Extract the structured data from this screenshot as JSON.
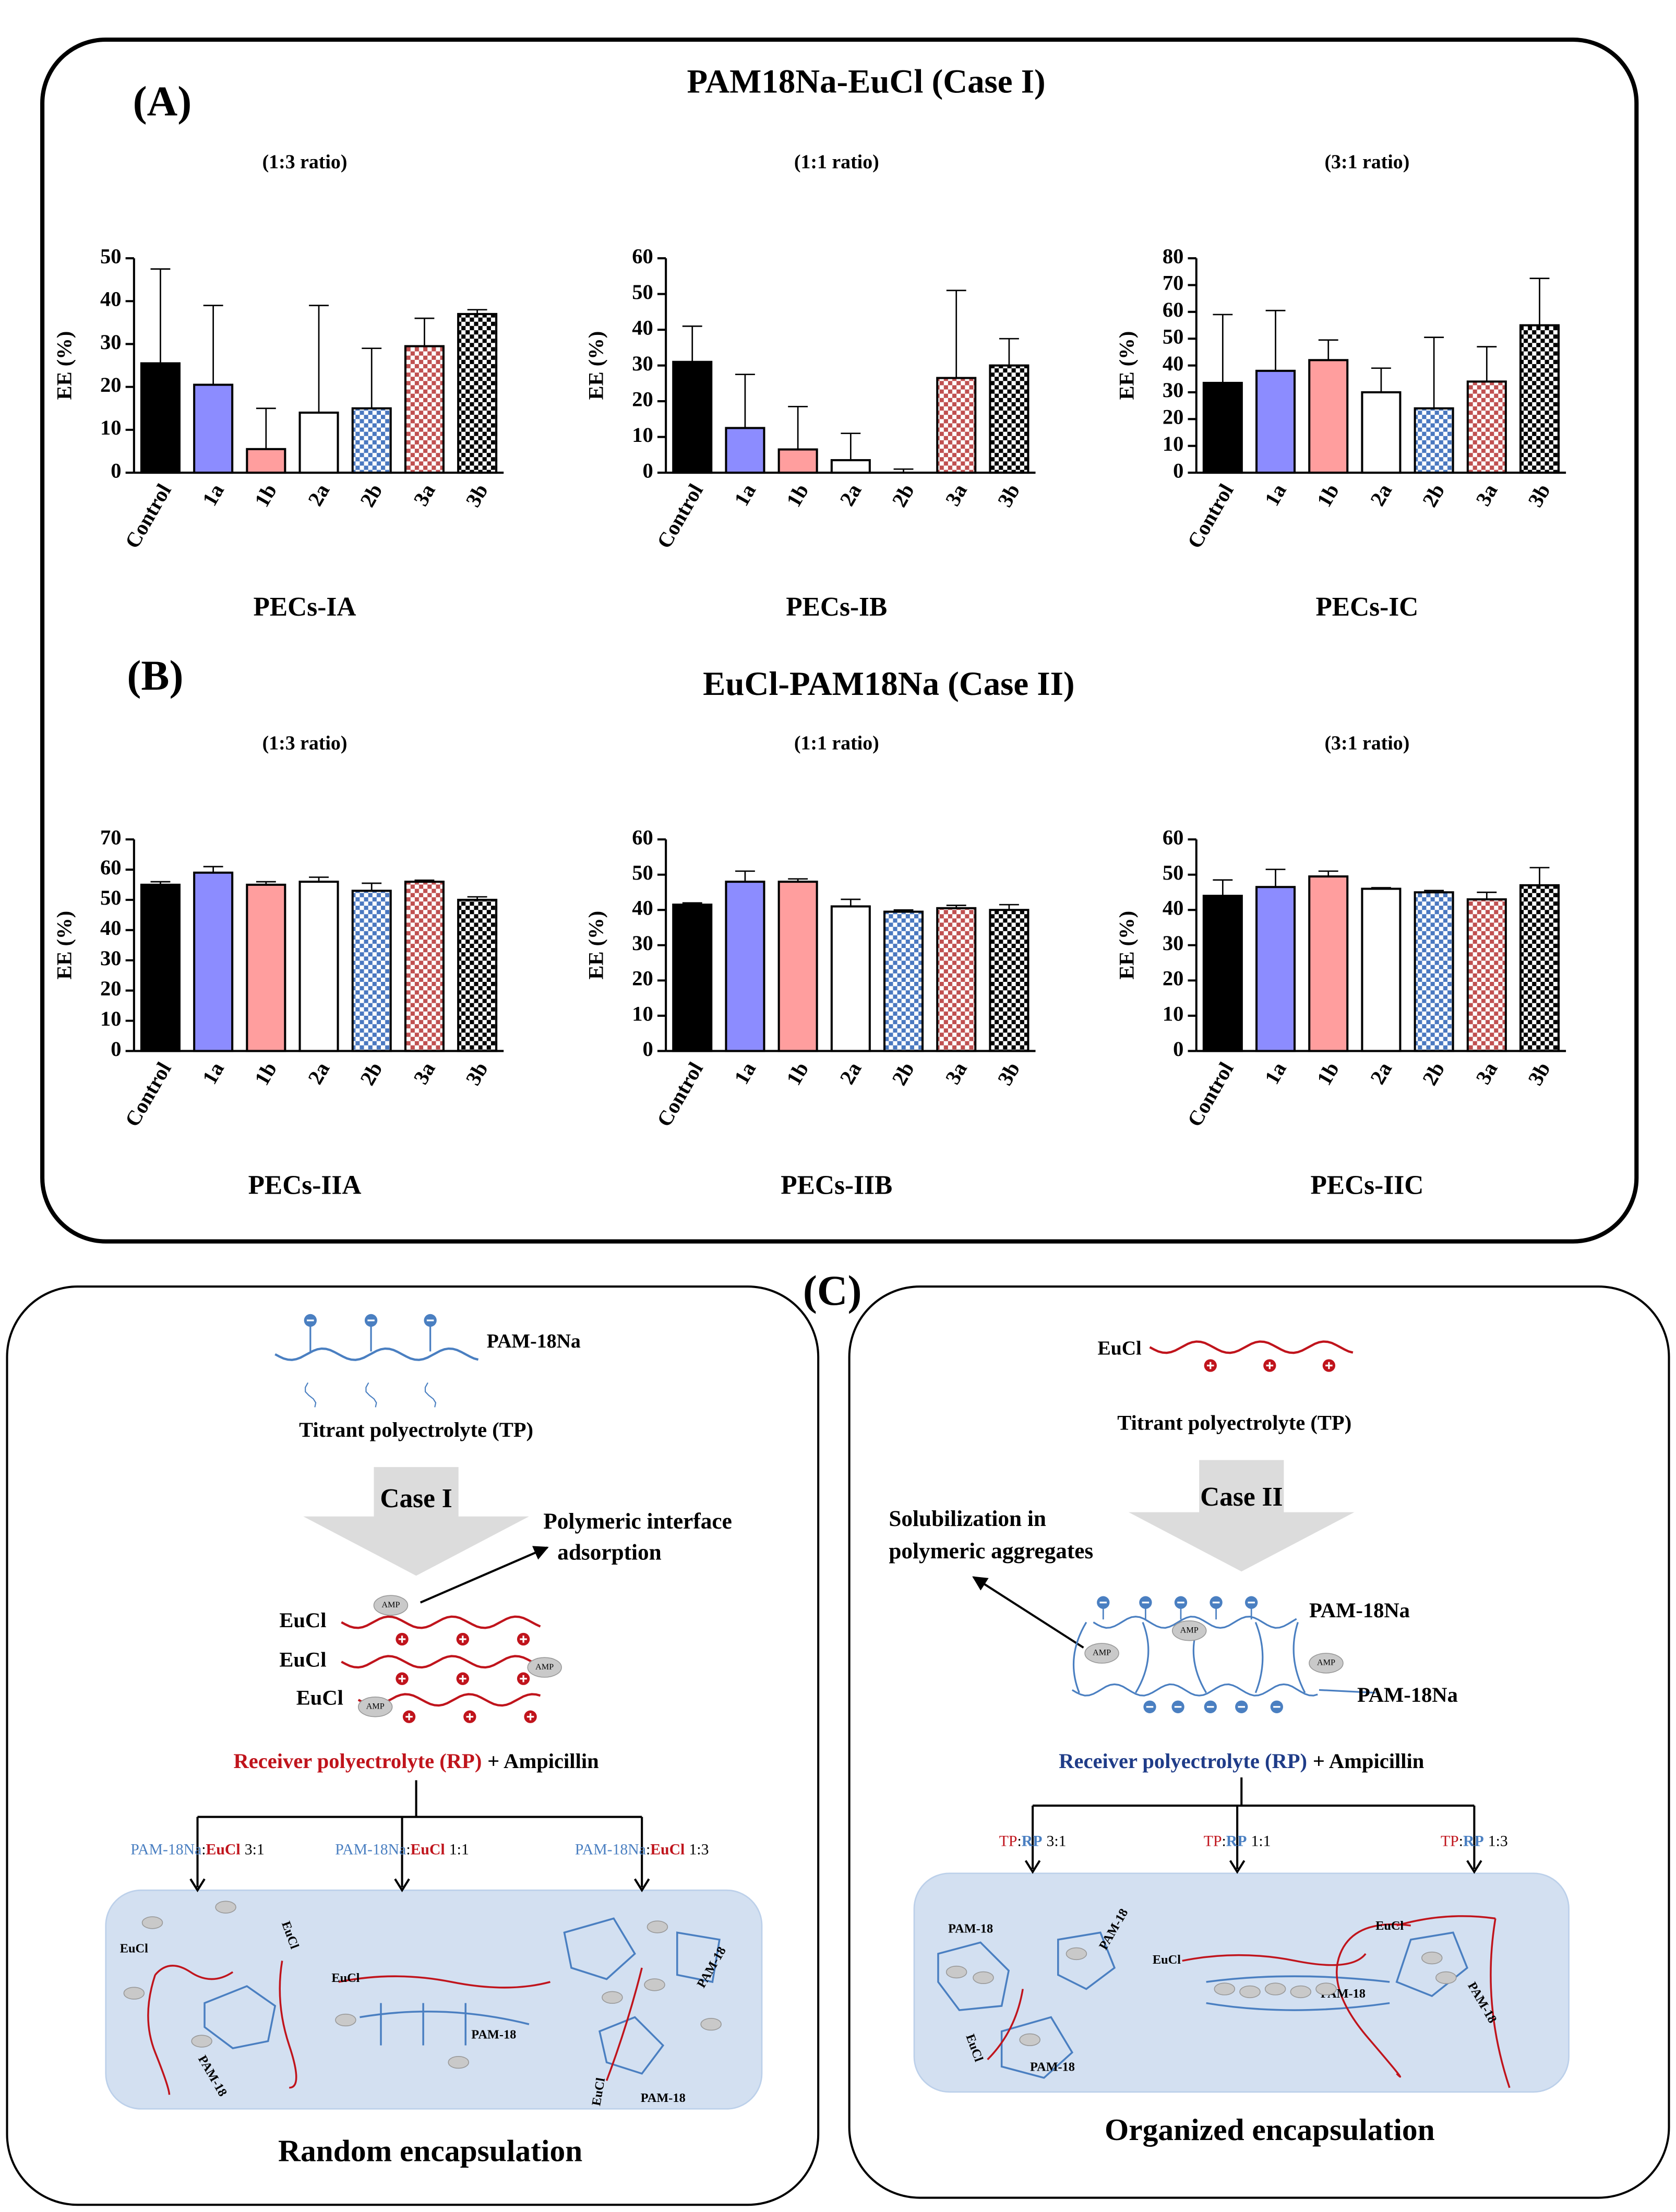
{
  "panels": {
    "a_label": "(A)",
    "a_title": "PAM18Na-EuCl (Case I)",
    "b_label": "(B)",
    "b_title": "EuCl-PAM18Na (Case II)"
  },
  "chart_data": [
    {
      "type": "bar",
      "title": "(1:3 ratio)",
      "xlabel": "PECs-IA",
      "ylabel": "EE (%)",
      "categories": [
        "Control",
        "1a",
        "1b",
        "2a",
        "2b",
        "3a",
        "3b"
      ],
      "values": [
        25.5,
        20.5,
        5.5,
        14,
        15,
        29.5,
        37
      ],
      "errors": [
        22,
        18.5,
        9.5,
        25,
        14,
        6.5,
        1
      ],
      "colors": [
        "#000000",
        "#8c8cff",
        "#ff9e9e",
        "#ffffff",
        "#4a78c0",
        "#c05050",
        "#000000"
      ],
      "patterns": [
        "solid",
        "solid",
        "solid",
        "solid",
        "checker",
        "checker",
        "checker"
      ],
      "ylim": [
        0,
        50
      ],
      "yticks": [
        0,
        10,
        20,
        30,
        40,
        50
      ]
    },
    {
      "type": "bar",
      "title": "(1:1 ratio)",
      "xlabel": "PECs-IB",
      "ylabel": "EE (%)",
      "categories": [
        "Control",
        "1a",
        "1b",
        "2a",
        "2b",
        "3a",
        "3b"
      ],
      "values": [
        31,
        12.5,
        6.5,
        3.5,
        0,
        26.5,
        30
      ],
      "errors": [
        10,
        15,
        12,
        7.5,
        1,
        24.5,
        7.5
      ],
      "colors": [
        "#000000",
        "#8c8cff",
        "#ff9e9e",
        "#ffffff",
        "#4a78c0",
        "#c05050",
        "#000000"
      ],
      "patterns": [
        "solid",
        "solid",
        "solid",
        "solid",
        "checker",
        "checker",
        "checker"
      ],
      "ylim": [
        0,
        60
      ],
      "yticks": [
        0,
        10,
        20,
        30,
        40,
        50,
        60
      ]
    },
    {
      "type": "bar",
      "title": "(3:1 ratio)",
      "xlabel": "PECs-IC",
      "ylabel": "EE (%)",
      "categories": [
        "Control",
        "1a",
        "1b",
        "2a",
        "2b",
        "3a",
        "3b"
      ],
      "values": [
        33.5,
        38,
        42,
        30,
        24,
        34,
        55
      ],
      "errors": [
        25.5,
        22.5,
        7.5,
        9,
        26.5,
        13,
        17.5
      ],
      "colors": [
        "#000000",
        "#8c8cff",
        "#ff9e9e",
        "#ffffff",
        "#4a78c0",
        "#c05050",
        "#000000"
      ],
      "patterns": [
        "solid",
        "solid",
        "solid",
        "solid",
        "checker",
        "checker",
        "checker"
      ],
      "ylim": [
        0,
        80
      ],
      "yticks": [
        0,
        10,
        20,
        30,
        40,
        50,
        60,
        70,
        80
      ]
    },
    {
      "type": "bar",
      "title": "(1:3 ratio)",
      "xlabel": "PECs-IIA",
      "ylabel": "EE (%)",
      "categories": [
        "Control",
        "1a",
        "1b",
        "2a",
        "2b",
        "3a",
        "3b"
      ],
      "values": [
        55,
        59,
        55,
        56,
        53,
        56,
        50
      ],
      "errors": [
        1,
        2,
        1,
        1.5,
        2.5,
        0.5,
        1
      ],
      "colors": [
        "#000000",
        "#8c8cff",
        "#ff9e9e",
        "#ffffff",
        "#4a78c0",
        "#c05050",
        "#000000"
      ],
      "patterns": [
        "solid",
        "solid",
        "solid",
        "solid",
        "checker",
        "checker",
        "checker"
      ],
      "ylim": [
        0,
        70
      ],
      "yticks": [
        0,
        10,
        20,
        30,
        40,
        50,
        60,
        70
      ]
    },
    {
      "type": "bar",
      "title": "(1:1 ratio)",
      "xlabel": "PECs-IIB",
      "ylabel": "EE (%)",
      "categories": [
        "Control",
        "1a",
        "1b",
        "2a",
        "2b",
        "3a",
        "3b"
      ],
      "values": [
        41.5,
        48,
        48,
        41,
        39.5,
        40.5,
        40
      ],
      "errors": [
        0.5,
        3,
        0.8,
        2,
        0.5,
        0.8,
        1.5
      ],
      "colors": [
        "#000000",
        "#8c8cff",
        "#ff9e9e",
        "#ffffff",
        "#4a78c0",
        "#c05050",
        "#000000"
      ],
      "patterns": [
        "solid",
        "solid",
        "solid",
        "solid",
        "checker",
        "checker",
        "checker"
      ],
      "ylim": [
        0,
        60
      ],
      "yticks": [
        0,
        10,
        20,
        30,
        40,
        50,
        60
      ]
    },
    {
      "type": "bar",
      "title": "(3:1 ratio)",
      "xlabel": "PECs-IIC",
      "ylabel": "EE (%)",
      "categories": [
        "Control",
        "1a",
        "1b",
        "2a",
        "2b",
        "3a",
        "3b"
      ],
      "values": [
        44,
        46.5,
        49.5,
        46,
        45,
        43,
        47
      ],
      "errors": [
        4.5,
        5,
        1.5,
        0.3,
        0.5,
        2,
        5
      ],
      "colors": [
        "#000000",
        "#8c8cff",
        "#ff9e9e",
        "#ffffff",
        "#4a78c0",
        "#c05050",
        "#000000"
      ],
      "patterns": [
        "solid",
        "solid",
        "solid",
        "solid",
        "checker",
        "checker",
        "checker"
      ],
      "ylim": [
        0,
        60
      ],
      "yticks": [
        0,
        10,
        20,
        30,
        40,
        50,
        60
      ]
    }
  ],
  "diagram": {
    "label": "(C)",
    "left": {
      "chain_label": "PAM-18Na",
      "tp": "Titrant polyectrolyte (TP)",
      "case": "Case I",
      "note": [
        "Polymeric interface",
        "adsorption"
      ],
      "chains": [
        "EuCl",
        "EuCl",
        "EuCl"
      ],
      "amp": [
        "AMP",
        "AMP",
        "AMP"
      ],
      "rp": "Receiver polyectrolyte (RP)",
      "rp_plus": "+ Ampicillin",
      "ratios": [
        {
          "a": "PAM-18Na",
          "sep": ":",
          "b": "EuCl",
          "c": "3:1"
        },
        {
          "a": "PAM-18Na",
          "sep": ":",
          "b": "EuCl",
          "c": "1:1"
        },
        {
          "a": "PAM-18Na",
          "sep": ":",
          "b": "EuCl",
          "c": "1:3"
        }
      ],
      "inner": [
        "EuCl",
        "EuCl",
        "PAM-18",
        "EuCl",
        "PAM-18",
        "PAM-18",
        "EuCl",
        "PAM-18"
      ],
      "footer": "Random encapsulation"
    },
    "right": {
      "chain_label": "EuCl",
      "tp": "Titrant polyectrolyte (TP)",
      "case": "Case II",
      "note": [
        "Solubilization in",
        "polymeric aggregates"
      ],
      "chains": [
        "PAM-18Na",
        "PAM-18Na"
      ],
      "amp": [
        "AMP",
        "AMP",
        "AMP"
      ],
      "rp": "Receiver polyectrolyte (RP)",
      "rp_plus": "+ Ampicillin",
      "ratios": [
        {
          "a": "TP",
          "sep": ":",
          "b": "RP",
          "c": "3:1"
        },
        {
          "a": "TP",
          "sep": ":",
          "b": "RP",
          "c": "1:1"
        },
        {
          "a": "TP",
          "sep": ":",
          "b": "RP",
          "c": "1:3"
        }
      ],
      "inner": [
        "PAM-18",
        "PAM-18",
        "PAM-18",
        "EuCl",
        "PAM-18",
        "EuCl",
        "EuCl",
        "PAM-18"
      ],
      "footer": "Organized encapsulation"
    }
  }
}
